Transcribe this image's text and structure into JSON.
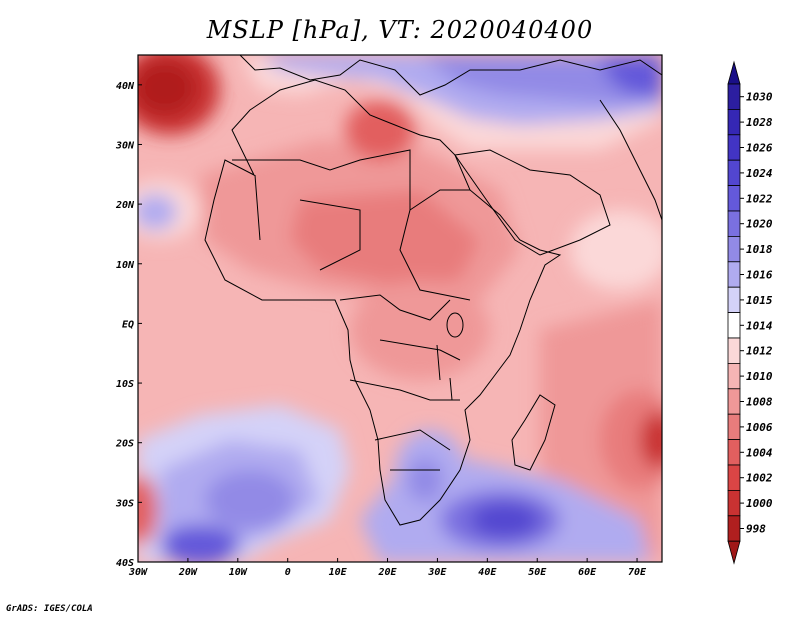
{
  "title": "MSLP [hPa], VT: 2020040400",
  "credit": "GrADS: IGES/COLA",
  "map": {
    "lon_range": [
      -30,
      75
    ],
    "lat_range": [
      -40,
      45
    ],
    "lon_ticks": [
      {
        "value": -30,
        "label": "30W"
      },
      {
        "value": -20,
        "label": "20W"
      },
      {
        "value": -10,
        "label": "10W"
      },
      {
        "value": 0,
        "label": "0"
      },
      {
        "value": 10,
        "label": "10E"
      },
      {
        "value": 20,
        "label": "20E"
      },
      {
        "value": 30,
        "label": "30E"
      },
      {
        "value": 40,
        "label": "40E"
      },
      {
        "value": 50,
        "label": "50E"
      },
      {
        "value": 60,
        "label": "60E"
      },
      {
        "value": 70,
        "label": "70E"
      }
    ],
    "lat_ticks": [
      {
        "value": 40,
        "label": "40N"
      },
      {
        "value": 30,
        "label": "30N"
      },
      {
        "value": 20,
        "label": "20N"
      },
      {
        "value": 10,
        "label": "10N"
      },
      {
        "value": 0,
        "label": "EQ"
      },
      {
        "value": -10,
        "label": "10S"
      },
      {
        "value": -20,
        "label": "20S"
      },
      {
        "value": -30,
        "label": "30S"
      },
      {
        "value": -40,
        "label": "40S"
      }
    ]
  },
  "colorbar": {
    "levels": [
      {
        "label": "1030",
        "color": "#2c1ea0"
      },
      {
        "label": "1028",
        "color": "#3527b4"
      },
      {
        "label": "1026",
        "color": "#4234c4"
      },
      {
        "label": "1024",
        "color": "#5246d0"
      },
      {
        "label": "1022",
        "color": "#6459da"
      },
      {
        "label": "1020",
        "color": "#7a70e0"
      },
      {
        "label": "1018",
        "color": "#928ae6"
      },
      {
        "label": "1016",
        "color": "#b0abf0"
      },
      {
        "label": "1015",
        "color": "#d4d2f8"
      },
      {
        "label": "1014",
        "color": "#ffffff"
      },
      {
        "label": "1012",
        "color": "#fbd8d8"
      },
      {
        "label": "1010",
        "color": "#f6b5b5"
      },
      {
        "label": "1008",
        "color": "#ef9898"
      },
      {
        "label": "1006",
        "color": "#e87c7c"
      },
      {
        "label": "1004",
        "color": "#e25f5f"
      },
      {
        "label": "1002",
        "color": "#da4545"
      },
      {
        "label": "1000",
        "color": "#c93232"
      },
      {
        "label": "998",
        "color": "#b01f1f"
      }
    ],
    "top_arrow_color": "#1a0f88",
    "bottom_arrow_color": "#a01818"
  }
}
